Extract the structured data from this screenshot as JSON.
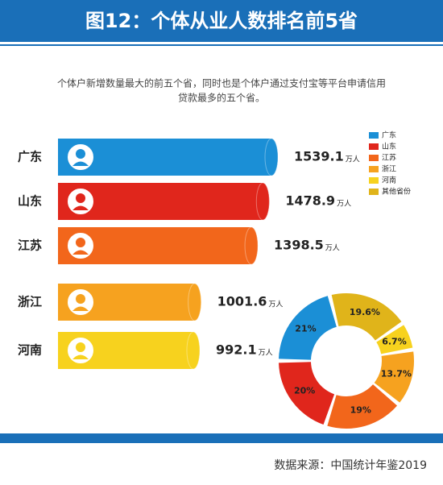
{
  "title": "图12：个体从业人数排名前5省",
  "subtitle": [
    "个体户新增数量最大的前五个省，同时也是个体户通过支付宝等平台申请信用",
    "贷款最多的五个省。"
  ],
  "source": "数据来源：中国统计年鉴2019",
  "chart_data": [
    {
      "type": "bar",
      "orientation": "horizontal",
      "categories": [
        "广东",
        "山东",
        "江苏",
        "浙江",
        "河南"
      ],
      "values": [
        1539.1,
        1478.9,
        1398.5,
        1001.6,
        992.1
      ],
      "unit": "万人",
      "colors": [
        "#1b8fd6",
        "#e0261c",
        "#f2661b",
        "#f6a21f",
        "#f7d21e"
      ]
    },
    {
      "type": "pie",
      "donut": true,
      "categories": [
        "广东",
        "山东",
        "江苏",
        "浙江",
        "河南",
        "其他省份"
      ],
      "values": [
        21,
        20,
        19,
        13.7,
        6.7,
        19.6
      ],
      "value_labels": [
        "21%",
        "20%",
        "19%",
        "13.7%",
        "6.7%",
        "19.6%"
      ],
      "colors": [
        "#1b8fd6",
        "#e0261c",
        "#f2661b",
        "#f6a21f",
        "#f7d21e",
        "#e0b41a"
      ],
      "legend": "top-right"
    }
  ]
}
